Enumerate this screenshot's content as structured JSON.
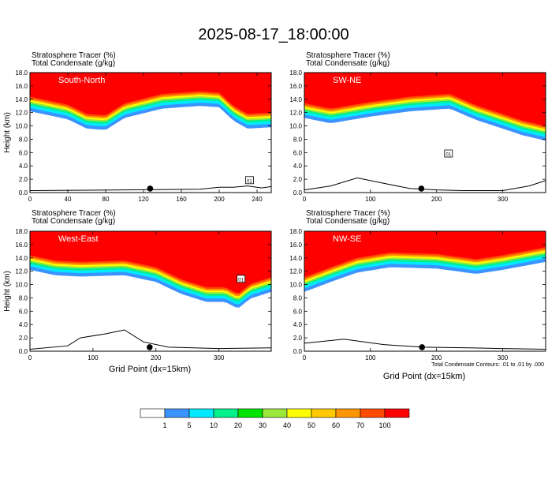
{
  "title": "2025-08-17_18:00:00",
  "fields": {
    "line1": "Stratosphere Tracer   (%)",
    "line2": "Total Condensate   (g/kg)"
  },
  "xlabel": "Grid Point (dx=15km)",
  "note": "Total Condensate Contours: .01 to .01 by .000",
  "colorbar": {
    "levels": [
      "1",
      "5",
      "10",
      "20",
      "30",
      "40",
      "50",
      "60",
      "70",
      "100"
    ],
    "colors": [
      "#ffffff",
      "#3a93ff",
      "#00eaff",
      "#00f08a",
      "#00e400",
      "#9be83a",
      "#ffff00",
      "#ffc800",
      "#ff9600",
      "#ff4b00",
      "#ff0000"
    ]
  },
  "chart_data": [
    {
      "type": "heatmap",
      "panel": "South-North",
      "ylabel": "Height (km)",
      "xlim": [
        0,
        255
      ],
      "ylim": [
        0,
        18
      ],
      "xticks": [
        "0",
        "40",
        "80",
        "120",
        "160",
        "200",
        "240"
      ],
      "yticks": [
        "0.0",
        "2.0",
        "4.0",
        "6.0",
        "8.0",
        "10.0",
        "12.0",
        "14.0",
        "16.0",
        "18.0"
      ],
      "tropopause_km": [
        [
          0,
          13.8
        ],
        [
          40,
          12.6
        ],
        [
          60,
          11.2
        ],
        [
          80,
          11.0
        ],
        [
          100,
          12.8
        ],
        [
          140,
          14.2
        ],
        [
          180,
          14.6
        ],
        [
          200,
          14.4
        ],
        [
          215,
          12.4
        ],
        [
          230,
          11.2
        ],
        [
          255,
          11.4
        ]
      ],
      "terrain_km": [
        [
          0,
          0.3
        ],
        [
          100,
          0.4
        ],
        [
          180,
          0.5
        ],
        [
          200,
          0.8
        ],
        [
          215,
          0.8
        ],
        [
          230,
          1.0
        ],
        [
          245,
          0.7
        ],
        [
          255,
          0.9
        ]
      ],
      "marker_x": 127,
      "boxed_label": {
        "text": "01",
        "x": 232,
        "y": 1.8
      }
    },
    {
      "type": "heatmap",
      "panel": "SW-NE",
      "ylabel": "",
      "xlim": [
        0,
        365
      ],
      "ylim": [
        0,
        18
      ],
      "xticks": [
        "0",
        "100",
        "200",
        "300"
      ],
      "yticks": [
        "0.0",
        "2.0",
        "4.0",
        "6.0",
        "8.0",
        "10.0",
        "12.0",
        "14.0",
        "16.0",
        "18.0"
      ],
      "tropopause_km": [
        [
          0,
          12.8
        ],
        [
          40,
          12.0
        ],
        [
          100,
          13.0
        ],
        [
          160,
          13.8
        ],
        [
          220,
          14.2
        ],
        [
          260,
          12.5
        ],
        [
          300,
          11.2
        ],
        [
          330,
          10.2
        ],
        [
          365,
          9.4
        ]
      ],
      "terrain_km": [
        [
          0,
          0.4
        ],
        [
          40,
          1.0
        ],
        [
          80,
          2.2
        ],
        [
          120,
          1.4
        ],
        [
          160,
          0.6
        ],
        [
          200,
          0.4
        ],
        [
          240,
          0.3
        ],
        [
          300,
          0.3
        ],
        [
          340,
          1.0
        ],
        [
          365,
          1.8
        ]
      ],
      "marker_x": 177,
      "boxed_label": {
        "text": "01",
        "x": 218,
        "y": 5.8
      }
    },
    {
      "type": "heatmap",
      "panel": "West-East",
      "ylabel": "Height (km)",
      "xlim": [
        0,
        383
      ],
      "ylim": [
        0,
        18
      ],
      "xticks": [
        "0",
        "100",
        "200",
        "300"
      ],
      "yticks": [
        "0.0",
        "2.0",
        "4.0",
        "6.0",
        "8.0",
        "10.0",
        "12.0",
        "14.0",
        "16.0",
        "18.0"
      ],
      "tropopause_km": [
        [
          0,
          13.8
        ],
        [
          40,
          13.0
        ],
        [
          80,
          12.8
        ],
        [
          150,
          13.0
        ],
        [
          200,
          12.0
        ],
        [
          240,
          10.2
        ],
        [
          280,
          9.0
        ],
        [
          310,
          9.0
        ],
        [
          330,
          8.0
        ],
        [
          350,
          9.5
        ],
        [
          383,
          10.5
        ]
      ],
      "terrain_km": [
        [
          0,
          0.3
        ],
        [
          60,
          0.8
        ],
        [
          80,
          2.0
        ],
        [
          120,
          2.6
        ],
        [
          150,
          3.2
        ],
        [
          180,
          1.4
        ],
        [
          220,
          0.6
        ],
        [
          300,
          0.4
        ],
        [
          383,
          0.5
        ]
      ],
      "marker_x": 190,
      "boxed_label": {
        "text": "01",
        "x": 335,
        "y": 10.8
      }
    },
    {
      "type": "heatmap",
      "panel": "NW-SE",
      "ylabel": "",
      "xlim": [
        0,
        365
      ],
      "ylim": [
        0,
        18
      ],
      "xticks": [
        "0",
        "100",
        "200",
        "300"
      ],
      "yticks": [
        "0.0",
        "2.0",
        "4.0",
        "6.0",
        "8.0",
        "10.0",
        "12.0",
        "14.0",
        "16.0",
        "18.0"
      ],
      "tropopause_km": [
        [
          0,
          10.5
        ],
        [
          40,
          12.0
        ],
        [
          80,
          13.4
        ],
        [
          130,
          14.2
        ],
        [
          200,
          14.0
        ],
        [
          260,
          13.2
        ],
        [
          300,
          13.8
        ],
        [
          365,
          15.0
        ]
      ],
      "terrain_km": [
        [
          0,
          1.2
        ],
        [
          60,
          1.8
        ],
        [
          120,
          1.0
        ],
        [
          180,
          0.6
        ],
        [
          250,
          0.5
        ],
        [
          300,
          0.4
        ],
        [
          365,
          0.3
        ]
      ],
      "marker_x": 178,
      "boxed_label": {
        "text": "",
        "x": 0,
        "y": 0
      }
    }
  ]
}
